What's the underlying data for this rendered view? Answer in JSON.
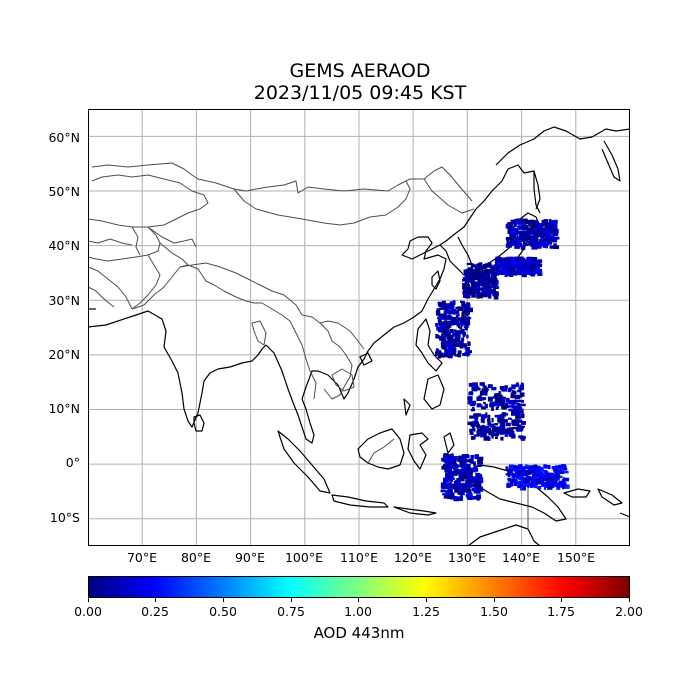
{
  "title": "GEMS AERAOD",
  "subtitle": "2023/11/05 09:45 KST",
  "colorbar": {
    "label": "AOD 443nm",
    "ticks": [
      "0.00",
      "0.25",
      "0.50",
      "0.75",
      "1.00",
      "1.25",
      "1.50",
      "1.75",
      "2.00"
    ],
    "min": 0,
    "max": 2,
    "colormap": "jet"
  },
  "map": {
    "lon_range": [
      60,
      160
    ],
    "lat_range": [
      -15,
      65
    ],
    "lon_ticks": [
      "70°E",
      "80°E",
      "90°E",
      "100°E",
      "110°E",
      "120°E",
      "130°E",
      "140°E",
      "150°E"
    ],
    "lat_ticks": [
      "60°N",
      "50°N",
      "40°N",
      "30°N",
      "20°N",
      "10°N",
      "0°",
      "10°S"
    ],
    "grid": true,
    "coastline_color": "#000000",
    "border_color": "#555555",
    "aod_regions": [
      {
        "lon": [
          129,
          135
        ],
        "lat": [
          31,
          37
        ],
        "aod": 0.05
      },
      {
        "lon": [
          135,
          143
        ],
        "lat": [
          35,
          38
        ],
        "aod": 0.12
      },
      {
        "lon": [
          137,
          146
        ],
        "lat": [
          40,
          45
        ],
        "aod": 0.1
      },
      {
        "lon": [
          124,
          130
        ],
        "lat": [
          20,
          30
        ],
        "aod": 0.08
      },
      {
        "lon": [
          130,
          140
        ],
        "lat": [
          5,
          15
        ],
        "aod": 0.06
      },
      {
        "lon": [
          125,
          132
        ],
        "lat": [
          -6,
          2
        ],
        "aod": 0.1
      },
      {
        "lon": [
          137,
          148
        ],
        "lat": [
          -4,
          0
        ],
        "aod": 0.2
      }
    ]
  }
}
